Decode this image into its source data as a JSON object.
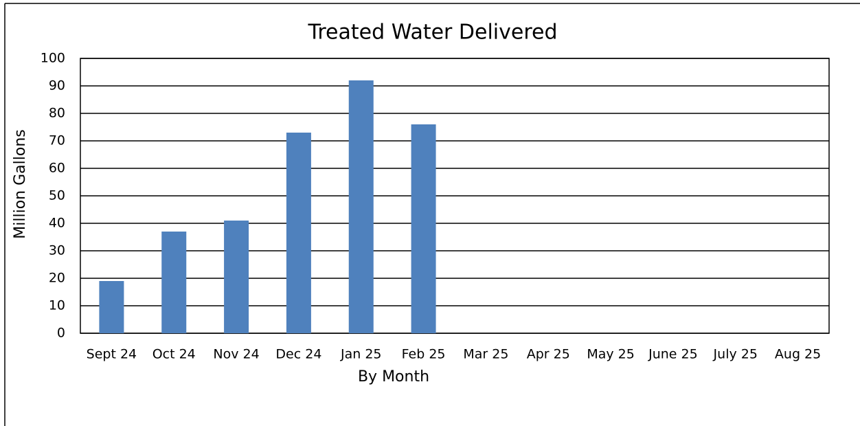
{
  "chart_data": {
    "type": "bar",
    "title": "Treated Water Delivered",
    "x_label": "By Month",
    "y_label": "Million Gallons",
    "categories": [
      "Sept 24",
      "Oct 24",
      "Nov 24",
      "Dec 24",
      "Jan 25",
      "Feb 25",
      "Mar 25",
      "Apr 25",
      "May 25",
      "June 25",
      "July 25",
      "Aug 25"
    ],
    "values": [
      19,
      37,
      41,
      73,
      92,
      76,
      null,
      null,
      null,
      null,
      null,
      null
    ],
    "color": "#4f81bd",
    "ylim": [
      0,
      100
    ],
    "yticks": [
      0,
      10,
      20,
      30,
      40,
      50,
      60,
      70,
      80,
      90,
      100
    ],
    "grid": true
  }
}
